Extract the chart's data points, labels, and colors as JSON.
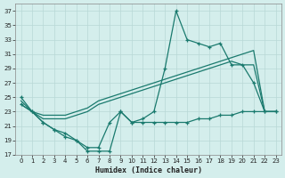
{
  "xlabel": "Humidex (Indice chaleur)",
  "bg_color": "#d4eeec",
  "grid_color": "#b8d8d6",
  "line_color": "#1a7a6e",
  "xlim": [
    -0.5,
    23.5
  ],
  "ylim": [
    17,
    38
  ],
  "yticks": [
    17,
    19,
    21,
    23,
    25,
    27,
    29,
    31,
    33,
    35,
    37
  ],
  "xticks": [
    0,
    1,
    2,
    3,
    4,
    5,
    6,
    7,
    8,
    9,
    10,
    11,
    12,
    13,
    14,
    15,
    16,
    17,
    18,
    19,
    20,
    21,
    22,
    23
  ],
  "line1_x": [
    0,
    1,
    2,
    3,
    4,
    5,
    6,
    7,
    8,
    9,
    10,
    11,
    12,
    13,
    14,
    15,
    16,
    17,
    18,
    19,
    20,
    21,
    22,
    23
  ],
  "line1_y": [
    24.5,
    23.0,
    22.5,
    22.5,
    22.5,
    23.0,
    23.5,
    24.5,
    25.0,
    25.5,
    26.0,
    26.5,
    27.0,
    27.5,
    28.0,
    28.5,
    29.0,
    29.5,
    30.0,
    30.5,
    31.0,
    31.5,
    23.0,
    23.0
  ],
  "line2_x": [
    0,
    1,
    2,
    3,
    4,
    5,
    6,
    7,
    8,
    9,
    10,
    11,
    12,
    13,
    14,
    15,
    16,
    17,
    18,
    19,
    20,
    21,
    22,
    23
  ],
  "line2_y": [
    24.0,
    23.0,
    22.0,
    22.0,
    22.0,
    22.5,
    23.0,
    24.0,
    24.5,
    25.0,
    25.5,
    26.0,
    26.5,
    27.0,
    27.5,
    28.0,
    28.5,
    29.0,
    29.5,
    30.0,
    29.5,
    29.5,
    23.0,
    23.0
  ],
  "line3_x": [
    0,
    1,
    2,
    3,
    4,
    5,
    6,
    7,
    8,
    9,
    10,
    11,
    12,
    13,
    14,
    15,
    16,
    17,
    18,
    19,
    20,
    21,
    22,
    23
  ],
  "line3_y": [
    24.0,
    23.0,
    21.5,
    20.5,
    19.5,
    19.0,
    18.0,
    18.0,
    21.5,
    23.0,
    21.5,
    21.5,
    21.5,
    21.5,
    21.5,
    21.5,
    22.0,
    22.0,
    22.5,
    22.5,
    23.0,
    23.0,
    23.0,
    23.0
  ],
  "line4_x": [
    0,
    1,
    2,
    3,
    4,
    5,
    6,
    7,
    8,
    9,
    10,
    11,
    12,
    13,
    14,
    15,
    16,
    17,
    18,
    19,
    20,
    21,
    22,
    23
  ],
  "line4_y": [
    25.0,
    23.0,
    21.5,
    20.5,
    20.0,
    19.0,
    17.5,
    17.5,
    17.5,
    23.0,
    21.5,
    22.0,
    23.0,
    29.0,
    37.0,
    33.0,
    32.5,
    32.0,
    32.5,
    29.5,
    29.5,
    27.0,
    23.0,
    23.0
  ]
}
